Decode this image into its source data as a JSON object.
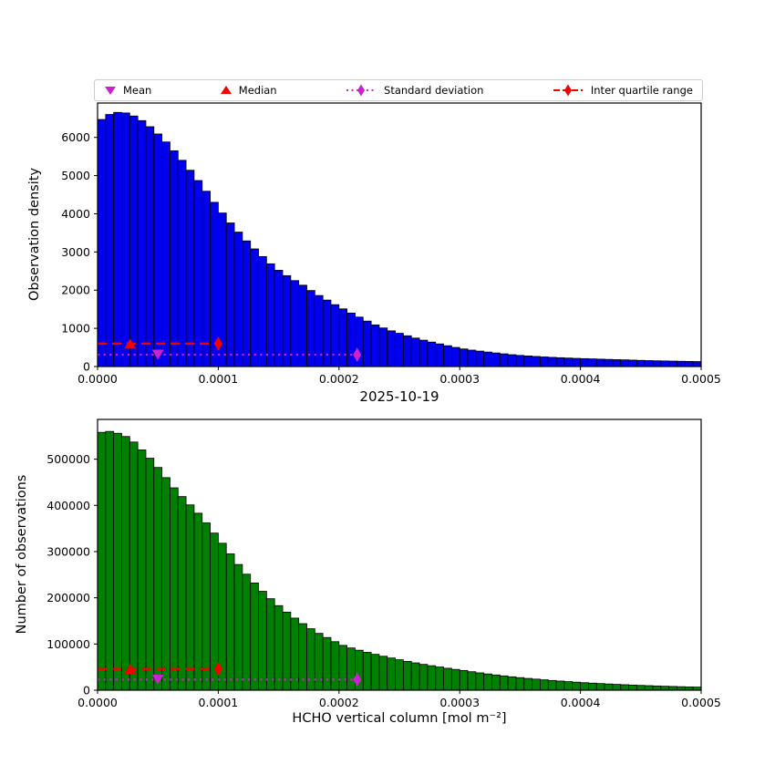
{
  "colors": {
    "blue": "#0000EE",
    "green": "#008000",
    "red": "#F40000",
    "magenta": "#CC22CC",
    "frame": "#000000",
    "legend_border": "#CCCCCC"
  },
  "legend": {
    "items": [
      {
        "label": "Mean",
        "type": "triangle-down",
        "color": "#CC22CC"
      },
      {
        "label": "Median",
        "type": "triangle-up",
        "color": "#F40000"
      },
      {
        "label": "Standard deviation",
        "type": "diamond-dotted",
        "color": "#CC22CC"
      },
      {
        "label": "Inter quartile range",
        "type": "diamond-dashed",
        "color": "#F40000"
      }
    ]
  },
  "chart_data": [
    {
      "type": "bar",
      "title": "",
      "xlabel": "2025-10-19",
      "ylabel": "Observation density",
      "legend_position": "top",
      "grid": false,
      "xlim": [
        0,
        0.0005
      ],
      "ylim": [
        0,
        6900
      ],
      "bin_start": 0,
      "bin_width": 6.6667e-06,
      "bar_color": "#0000EE",
      "xticks": [
        0,
        0.0001,
        0.0002,
        0.0003,
        0.0004,
        0.0005
      ],
      "xtick_labels": [
        "0.0000",
        "0.0001",
        "0.0002",
        "0.0003",
        "0.0004",
        "0.0005"
      ],
      "yticks": [
        0,
        1000,
        2000,
        3000,
        4000,
        5000,
        6000
      ],
      "ytick_labels": [
        "0",
        "1000",
        "2000",
        "3000",
        "4000",
        "5000",
        "6000"
      ],
      "values": [
        6470,
        6600,
        6655,
        6640,
        6560,
        6440,
        6280,
        6090,
        5880,
        5650,
        5400,
        5140,
        4870,
        4590,
        4300,
        4020,
        3760,
        3520,
        3290,
        3080,
        2880,
        2690,
        2520,
        2380,
        2250,
        2130,
        1990,
        1860,
        1740,
        1620,
        1510,
        1400,
        1295,
        1190,
        1090,
        1010,
        935,
        870,
        805,
        745,
        690,
        640,
        592,
        545,
        500,
        460,
        430,
        404,
        379,
        355,
        332,
        310,
        291,
        277,
        263,
        251,
        240,
        231,
        222,
        214,
        207,
        200,
        193,
        187,
        181,
        175,
        168,
        161,
        155,
        150,
        146,
        142,
        138,
        134,
        130
      ],
      "markers": {
        "mean_x": 5e-05,
        "median_x": 2.7e-05,
        "iqr": {
          "y": 600,
          "x_start": 0,
          "x_end": 0.0001
        },
        "std": {
          "y": 310,
          "x_start": 0,
          "x_end": 0.000215
        }
      }
    },
    {
      "type": "bar",
      "title": "",
      "xlabel": "HCHO vertical column [mol m⁻²]",
      "ylabel": "Number of observations",
      "grid": false,
      "xlim": [
        0,
        0.0005
      ],
      "ylim": [
        0,
        586000
      ],
      "bin_start": 0,
      "bin_width": 6.6667e-06,
      "bar_color": "#008000",
      "xticks": [
        0,
        0.0001,
        0.0002,
        0.0003,
        0.0004,
        0.0005
      ],
      "xtick_labels": [
        "0.0000",
        "0.0001",
        "0.0002",
        "0.0003",
        "0.0004",
        "0.0005"
      ],
      "yticks": [
        0,
        100000,
        200000,
        300000,
        400000,
        500000
      ],
      "ytick_labels": [
        "0",
        "100000",
        "200000",
        "300000",
        "400000",
        "500000"
      ],
      "values": [
        558000,
        560000,
        556000,
        549000,
        537000,
        520000,
        502000,
        482000,
        460000,
        438000,
        419000,
        401000,
        383000,
        362000,
        340000,
        318000,
        295000,
        272000,
        251000,
        232000,
        214000,
        198000,
        183000,
        169000,
        156000,
        144000,
        133000,
        123000,
        114000,
        105000,
        97000,
        91400,
        86500,
        81900,
        77600,
        73500,
        69600,
        65900,
        62400,
        59100,
        55900,
        53000,
        50200,
        47500,
        45000,
        42600,
        40000,
        37500,
        35200,
        33000,
        31000,
        29000,
        27200,
        25500,
        24000,
        22500,
        21100,
        19800,
        18500,
        17400,
        16300,
        15300,
        14400,
        13500,
        12600,
        11900,
        11100,
        10400,
        9800,
        9200,
        8600,
        8100,
        7600,
        7100,
        6700
      ],
      "markers": {
        "mean_x": 5e-05,
        "median_x": 2.7e-05,
        "iqr": {
          "y": 46000,
          "x_start": 0,
          "x_end": 0.0001
        },
        "std": {
          "y": 23000,
          "x_start": 0,
          "x_end": 0.000215
        }
      }
    }
  ]
}
